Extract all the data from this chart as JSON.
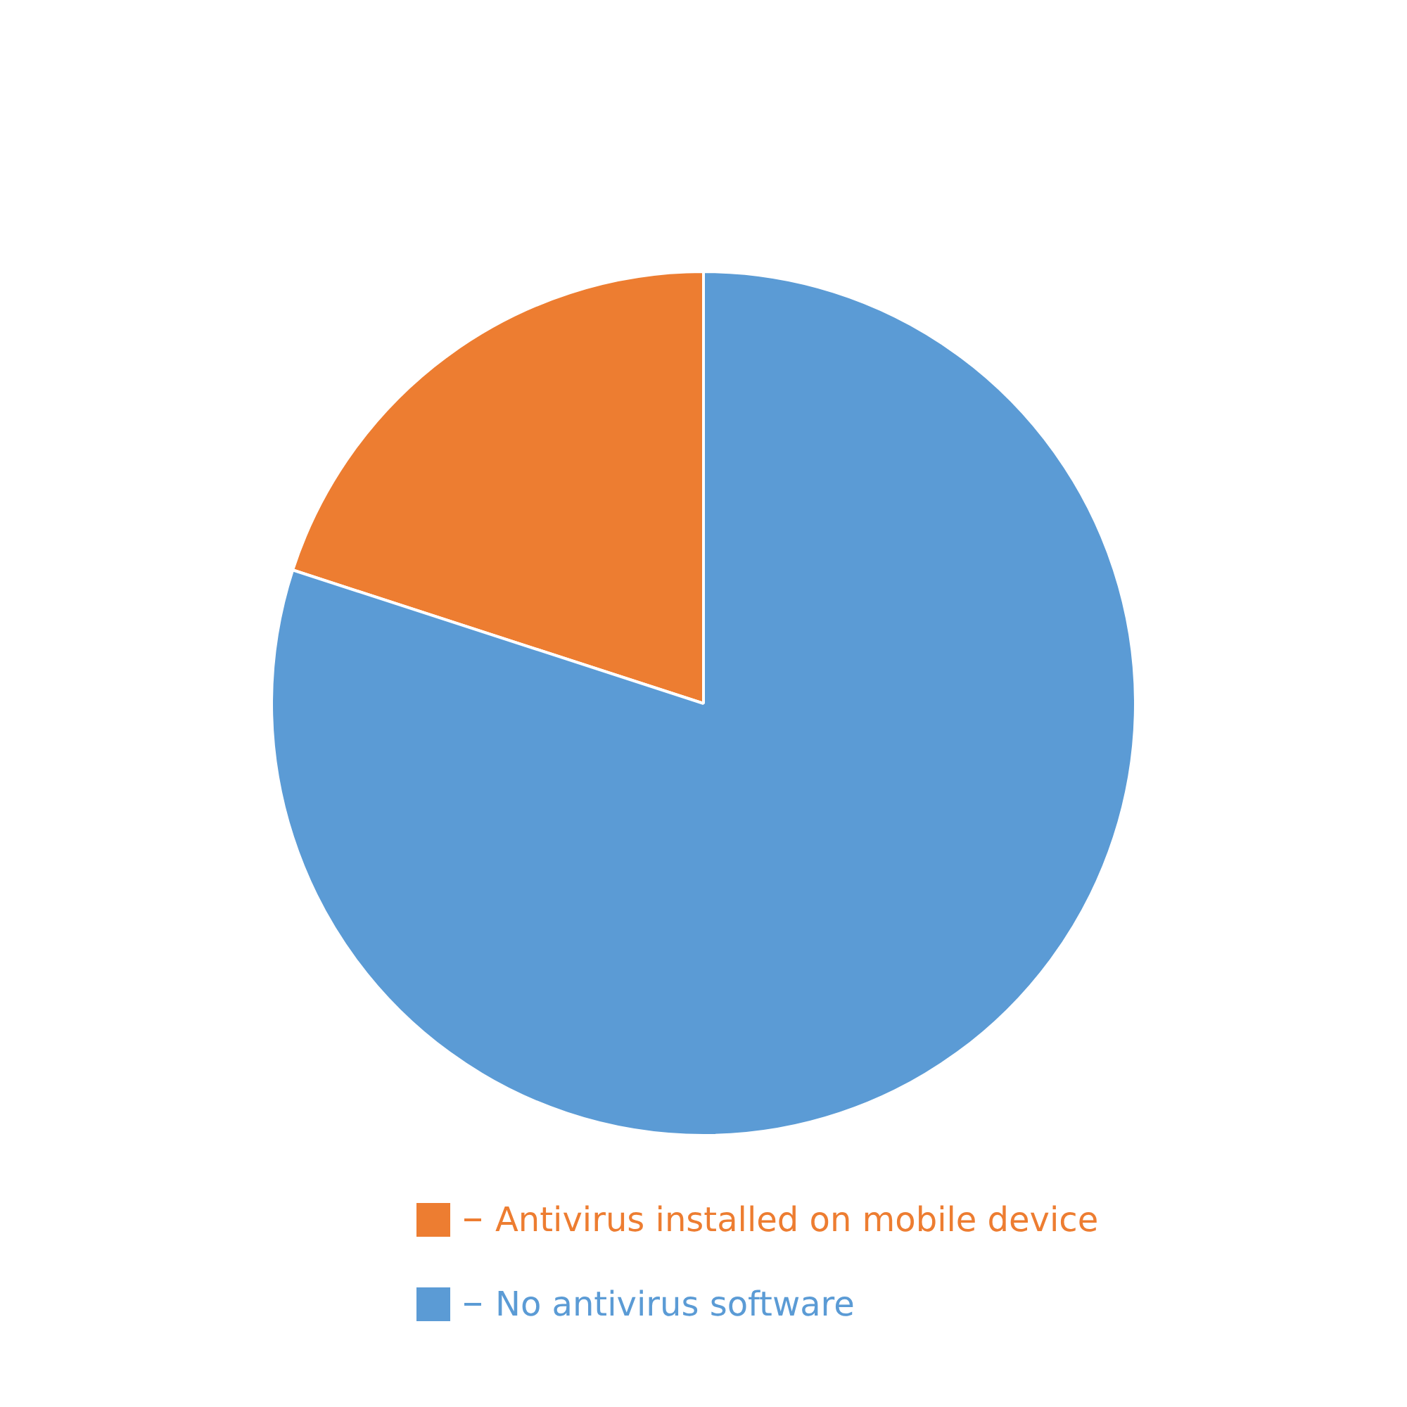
{
  "chart_data": {
    "type": "pie",
    "categories": [
      "Antivirus installed on mobile device",
      "No antivirus software"
    ],
    "values": [
      20,
      80
    ],
    "colors": [
      "#ed7d31",
      "#5b9bd5"
    ],
    "legend": "bottom"
  }
}
